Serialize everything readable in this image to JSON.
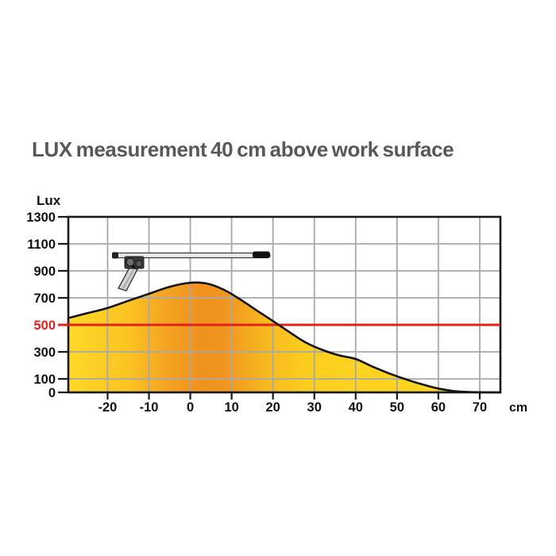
{
  "chart_data": {
    "type": "area",
    "title": "LUX measurement 40 cm above work surface",
    "y_axis_label": "Lux",
    "x_axis_unit": "cm",
    "x_range": [
      -29.5,
      75
    ],
    "y_range": [
      0,
      1300
    ],
    "x_ticks": [
      -20,
      -10,
      0,
      10,
      20,
      30,
      40,
      50,
      60,
      70
    ],
    "y_ticks": [
      0,
      100,
      300,
      500,
      700,
      900,
      1100,
      1300
    ],
    "y_gridlines": [
      100,
      300,
      700,
      900,
      1100
    ],
    "grid": true,
    "legend_position": "none",
    "reference_line": {
      "value": 500,
      "label": "500",
      "color": "#e3211c"
    },
    "series": [
      {
        "name": "illuminance-at-40cm",
        "points": [
          [
            -29.5,
            550
          ],
          [
            -25,
            586
          ],
          [
            -20,
            625
          ],
          [
            -15,
            678
          ],
          [
            -10,
            730
          ],
          [
            -5,
            782
          ],
          [
            0,
            812
          ],
          [
            4,
            806
          ],
          [
            8,
            762
          ],
          [
            12,
            690
          ],
          [
            16,
            608
          ],
          [
            20,
            528
          ],
          [
            24,
            446
          ],
          [
            28,
            368
          ],
          [
            32,
            314
          ],
          [
            36,
            274
          ],
          [
            40,
            247
          ],
          [
            44,
            192
          ],
          [
            48,
            142
          ],
          [
            52,
            98
          ],
          [
            56,
            60
          ],
          [
            60,
            28
          ],
          [
            64,
            9
          ],
          [
            68,
            2
          ],
          [
            72,
            0
          ],
          [
            75,
            0
          ]
        ]
      }
    ],
    "annotation_illustration": "linear task light on articulated arm (drawn inside plot near x = -15, y = 1000)",
    "colors": {
      "title": "#57585a",
      "axis": "#1a1a1a",
      "curve": "#141414",
      "gridline": "#a6a8ab",
      "reference": "#e3211c",
      "tick_label": "#111111",
      "area_yellow": "#fdd41e",
      "area_orange": "#f0941f",
      "lamp_light_gray": "#e9eaea",
      "lamp_mid_gray": "#cfd1d2",
      "lamp_dark": "#3b3b3d"
    },
    "fill_gradient": [
      {
        "offset": 0.0,
        "color": "#fed927"
      },
      {
        "offset": 0.14,
        "color": "#fbc322"
      },
      {
        "offset": 0.23,
        "color": "#f4a321"
      },
      {
        "offset": 0.3,
        "color": "#f0921e"
      },
      {
        "offset": 0.36,
        "color": "#f0951f"
      },
      {
        "offset": 0.46,
        "color": "#f7b91f"
      },
      {
        "offset": 0.55,
        "color": "#fccd1e"
      },
      {
        "offset": 0.67,
        "color": "#fdd320"
      },
      {
        "offset": 1.0,
        "color": "#fdd41e"
      }
    ]
  }
}
